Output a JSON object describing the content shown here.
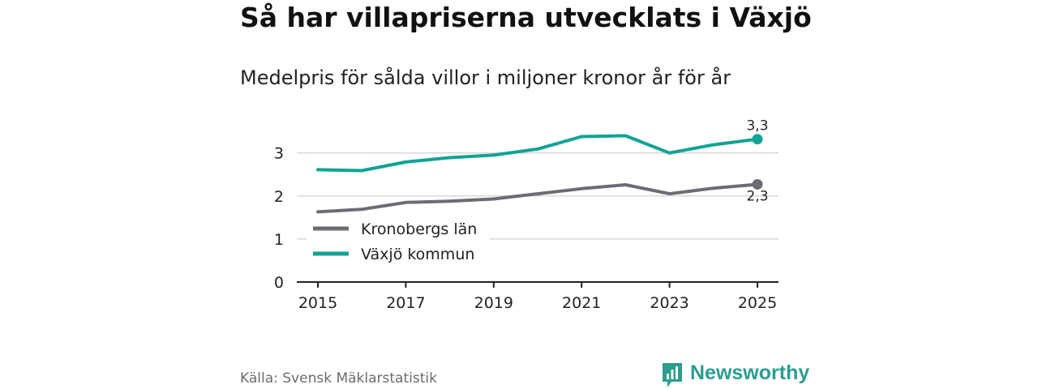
{
  "header": {
    "title": "Så har villapriserna utvecklats i Växjö",
    "subtitle": "Medelpris för sålda villor i miljoner kronor år för år"
  },
  "footer": {
    "source": "Källa: Svensk Mäklarstatistik",
    "brand": "Newsworthy"
  },
  "colors": {
    "vaxjo": "#11a395",
    "kronoberg": "#6e6b73",
    "grid": "#d8d8d8",
    "axis": "#222222",
    "brand": "#2e9c8f"
  },
  "chart_data": {
    "type": "line",
    "title": "Så har villapriserna utvecklats i Växjö",
    "subtitle": "Medelpris för sålda villor i miljoner kronor år för år",
    "xlabel": "",
    "ylabel": "",
    "x": [
      2015,
      2016,
      2017,
      2018,
      2019,
      2020,
      2021,
      2022,
      2023,
      2024,
      2025
    ],
    "xlim": [
      2014.5,
      2025.5
    ],
    "ylim": [
      0,
      3.4
    ],
    "x_ticks": [
      "2015",
      "2017",
      "2019",
      "2021",
      "2023",
      "2025"
    ],
    "y_ticks": [
      "0",
      "1",
      "2",
      "3"
    ],
    "grid": "horizontal",
    "legend": {
      "placement": "bottom-left",
      "entries": [
        "Kronobergs län",
        "Växjö kommun"
      ]
    },
    "series": [
      {
        "name": "Kronobergs län",
        "color": "#6e6b73",
        "values": [
          1.63,
          1.69,
          1.85,
          1.88,
          1.93,
          2.05,
          2.17,
          2.26,
          2.05,
          2.18,
          2.27
        ],
        "end_label": "2,3"
      },
      {
        "name": "Växjö kommun",
        "color": "#11a395",
        "values": [
          2.61,
          2.59,
          2.79,
          2.89,
          2.95,
          3.09,
          3.38,
          3.4,
          3.0,
          3.19,
          3.32
        ],
        "end_label": "3,3"
      }
    ]
  }
}
